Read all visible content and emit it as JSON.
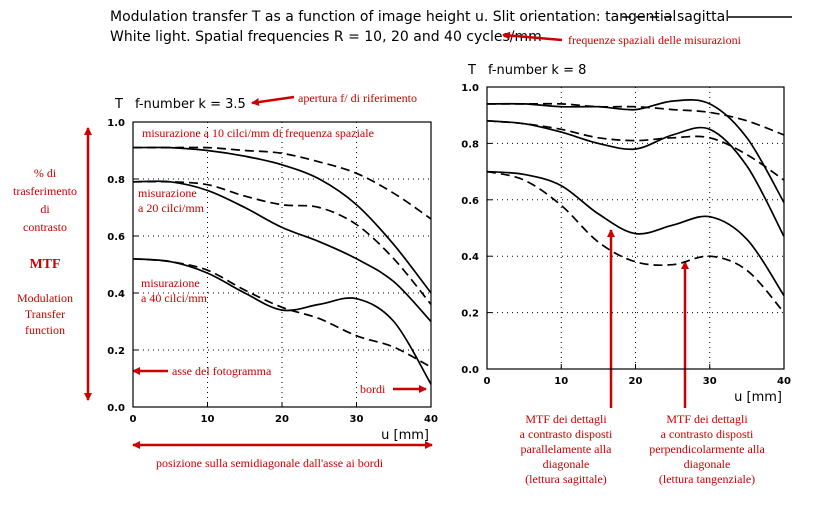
{
  "header": {
    "line1": "Modulation transfer T as a function of image height u. Slit orientation: tangential",
    "line1_sagittal": "sagittal",
    "line2": "White light. Spatial frequencies R = 10, 20 and 40 cycles/mm"
  },
  "annotations": {
    "freq_note": "frequenze spaziali delle misurazioni",
    "aperture_note": "apertura f/ di riferimento",
    "pct_l1": "% di",
    "pct_l2": "trasferimento",
    "pct_l3": "di",
    "pct_l4": "contrasto",
    "mtf": "MTF",
    "mtf_full_l1": "Modulation",
    "mtf_full_l2": "Transfer",
    "mtf_full_l3": "function",
    "meas10": "misurazione a 10 cilci/mm di frequenza spaziale",
    "meas20_l1": "misurazione",
    "meas20_l2": "a 20 cilci/mm",
    "meas40_l1": "misurazione",
    "meas40_l2": "a 40 cilci/mm",
    "axis_note": "asse del fotogramma",
    "edges_note": "bordi",
    "position_note": "posizione sulla semidiagonale dall'asse ai bordi",
    "sag_l1": "MTF dei dettagli",
    "sag_l2": "a contrasto disposti",
    "sag_l3": "parallelamente alla",
    "sag_l4": "diagonale",
    "sag_l5": "(lettura sagittale)",
    "tan_l1": "MTF dei dettagli",
    "tan_l2": "a contrasto disposti",
    "tan_l3": "perpendicolarmente alla",
    "tan_l4": "diagonale",
    "tan_l5": "(lettura tangenziale)"
  },
  "colors": {
    "annotation": "#cc0000",
    "curve": "#000000"
  },
  "chart_data": [
    {
      "type": "line",
      "ylabel": "T",
      "subtitle": "f-number k = 3.5",
      "xlabel": "u [mm]",
      "xlim": [
        0,
        40
      ],
      "ylim": [
        0,
        1
      ],
      "x_ticks": [
        0,
        10,
        20,
        30,
        40
      ],
      "y_ticks": [
        0,
        0.2,
        0.4,
        0.6,
        0.8,
        1.0
      ],
      "grid": true,
      "series": [
        {
          "name": "tangential",
          "freq": 10,
          "x": [
            0,
            5,
            10,
            15,
            20,
            25,
            30,
            35,
            40
          ],
          "values": [
            0.91,
            0.91,
            0.91,
            0.9,
            0.89,
            0.86,
            0.82,
            0.75,
            0.66
          ]
        },
        {
          "name": "sagittal",
          "freq": 10,
          "x": [
            0,
            5,
            10,
            15,
            20,
            25,
            30,
            35,
            40
          ],
          "values": [
            0.91,
            0.91,
            0.9,
            0.88,
            0.85,
            0.8,
            0.71,
            0.57,
            0.4
          ]
        },
        {
          "name": "tangential",
          "freq": 20,
          "x": [
            0,
            5,
            10,
            15,
            20,
            25,
            30,
            35,
            40
          ],
          "values": [
            0.79,
            0.79,
            0.78,
            0.74,
            0.71,
            0.7,
            0.64,
            0.52,
            0.36
          ]
        },
        {
          "name": "sagittal",
          "freq": 20,
          "x": [
            0,
            5,
            10,
            15,
            20,
            25,
            30,
            35,
            40
          ],
          "values": [
            0.79,
            0.79,
            0.76,
            0.7,
            0.63,
            0.58,
            0.52,
            0.44,
            0.3
          ]
        },
        {
          "name": "tangential",
          "freq": 40,
          "x": [
            0,
            5,
            10,
            15,
            20,
            25,
            30,
            35,
            40
          ],
          "values": [
            0.52,
            0.51,
            0.48,
            0.41,
            0.35,
            0.31,
            0.25,
            0.21,
            0.14
          ]
        },
        {
          "name": "sagittal",
          "freq": 40,
          "x": [
            0,
            5,
            10,
            15,
            20,
            25,
            30,
            35,
            40
          ],
          "values": [
            0.52,
            0.51,
            0.47,
            0.4,
            0.34,
            0.36,
            0.38,
            0.3,
            0.08
          ]
        }
      ]
    },
    {
      "type": "line",
      "ylabel": "T",
      "subtitle": "f-number k = 8",
      "xlabel": "u [mm]",
      "xlim": [
        0,
        40
      ],
      "ylim": [
        0,
        1
      ],
      "x_ticks": [
        0,
        10,
        20,
        30,
        40
      ],
      "y_ticks": [
        0,
        0.2,
        0.4,
        0.6,
        0.8,
        1.0
      ],
      "grid": true,
      "series": [
        {
          "name": "tangential",
          "freq": 10,
          "x": [
            0,
            5,
            10,
            15,
            20,
            25,
            30,
            35,
            40
          ],
          "values": [
            0.94,
            0.94,
            0.94,
            0.93,
            0.93,
            0.92,
            0.91,
            0.88,
            0.83
          ]
        },
        {
          "name": "sagittal",
          "freq": 10,
          "x": [
            0,
            5,
            10,
            15,
            20,
            25,
            30,
            35,
            40
          ],
          "values": [
            0.94,
            0.94,
            0.93,
            0.93,
            0.92,
            0.95,
            0.94,
            0.82,
            0.59
          ]
        },
        {
          "name": "tangential",
          "freq": 20,
          "x": [
            0,
            5,
            10,
            15,
            20,
            25,
            30,
            35,
            40
          ],
          "values": [
            0.88,
            0.87,
            0.85,
            0.82,
            0.81,
            0.82,
            0.82,
            0.76,
            0.67
          ]
        },
        {
          "name": "sagittal",
          "freq": 20,
          "x": [
            0,
            5,
            10,
            15,
            20,
            25,
            30,
            35,
            40
          ],
          "values": [
            0.88,
            0.87,
            0.84,
            0.8,
            0.78,
            0.83,
            0.85,
            0.72,
            0.47
          ]
        },
        {
          "name": "tangential",
          "freq": 40,
          "x": [
            0,
            5,
            10,
            15,
            20,
            25,
            30,
            35,
            40
          ],
          "values": [
            0.7,
            0.67,
            0.58,
            0.45,
            0.38,
            0.37,
            0.4,
            0.35,
            0.2
          ]
        },
        {
          "name": "sagittal",
          "freq": 40,
          "x": [
            0,
            5,
            10,
            15,
            20,
            25,
            30,
            35,
            40
          ],
          "values": [
            0.7,
            0.69,
            0.65,
            0.55,
            0.48,
            0.51,
            0.54,
            0.46,
            0.26
          ]
        }
      ]
    }
  ]
}
